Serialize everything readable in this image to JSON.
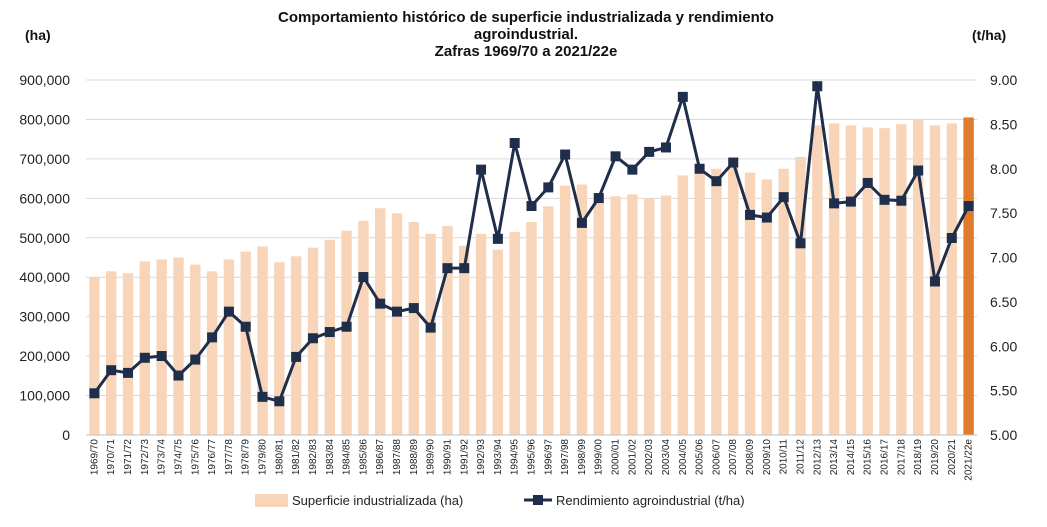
{
  "chart_data": {
    "type": "bar+line",
    "title": [
      "Comportamiento histórico de superficie industrializada y rendimiento",
      "agroindustrial.",
      "Zafras 1969/70 a 2021/22e"
    ],
    "ylabel_left": "(ha)",
    "ylabel_right": "(t/ha)",
    "ylim_left": [
      0,
      900000
    ],
    "ylim_right": [
      5.0,
      9.0
    ],
    "yticks_left": [
      "0",
      "100,000",
      "200,000",
      "300,000",
      "400,000",
      "500,000",
      "600,000",
      "700,000",
      "800,000",
      "900,000"
    ],
    "yticks_right": [
      "5.00",
      "5.50",
      "6.00",
      "6.50",
      "7.00",
      "7.50",
      "8.00",
      "8.50",
      "9.00"
    ],
    "grid": true,
    "legend_position": "bottom",
    "categories": [
      "1969/70",
      "1970/71",
      "1971/72",
      "1972/73",
      "1973/74",
      "1974/75",
      "1975/76",
      "1976/77",
      "1977/78",
      "1978/79",
      "1979/80",
      "1980/81",
      "1981/82",
      "1982/83",
      "1983/84",
      "1984/85",
      "1985/86",
      "1986/87",
      "1987/88",
      "1988/89",
      "1989/90",
      "1990/91",
      "1991/92",
      "1992/93",
      "1993/94",
      "1994/95",
      "1995/96",
      "1996/97",
      "1997/98",
      "1998/99",
      "1999/00",
      "2000/01",
      "2001/02",
      "2002/03",
      "2003/04",
      "2004/05",
      "2005/06",
      "2006/07",
      "2007/08",
      "2008/09",
      "2009/10",
      "2010/11",
      "2011/12",
      "2012/13",
      "2013/14",
      "2014/15",
      "2015/16",
      "2016/17",
      "2017/18",
      "2018/19",
      "2019/20",
      "2020/21",
      "2021/22e"
    ],
    "series": [
      {
        "name": "Superficie industrializada (ha)",
        "type": "bar",
        "axis": "left",
        "color": "#F8D5B8",
        "highlight_color": "#E07B2E",
        "highlight_last": true,
        "values": [
          400000,
          415000,
          410000,
          440000,
          445000,
          450000,
          432000,
          415000,
          445000,
          465000,
          478000,
          438000,
          453000,
          475000,
          495000,
          518000,
          543000,
          575000,
          562000,
          540000,
          510000,
          530000,
          480000,
          510000,
          470000,
          515000,
          540000,
          580000,
          632000,
          635000,
          605000,
          605000,
          610000,
          600000,
          607000,
          658000,
          663000,
          675000,
          700000,
          665000,
          648000,
          675000,
          705000,
          785000,
          790000,
          785000,
          780000,
          778000,
          788000,
          800000,
          785000,
          790000,
          805000
        ]
      },
      {
        "name": "Rendimiento agroindustrial (t/ha)",
        "type": "line",
        "axis": "right",
        "color": "#1F2E4A",
        "values": [
          5.47,
          5.73,
          5.7,
          5.87,
          5.89,
          5.67,
          5.85,
          6.1,
          6.39,
          6.22,
          5.43,
          5.38,
          5.88,
          6.09,
          6.16,
          6.22,
          6.78,
          6.48,
          6.39,
          6.43,
          6.21,
          6.88,
          6.88,
          7.99,
          7.21,
          8.29,
          7.58,
          7.79,
          8.16,
          7.39,
          7.67,
          8.14,
          7.99,
          8.19,
          8.24,
          8.81,
          8.0,
          7.86,
          8.07,
          7.48,
          7.45,
          7.68,
          7.16,
          8.93,
          7.61,
          7.63,
          7.84,
          7.65,
          7.64,
          7.98,
          6.73,
          7.22,
          7.58
        ]
      }
    ]
  }
}
